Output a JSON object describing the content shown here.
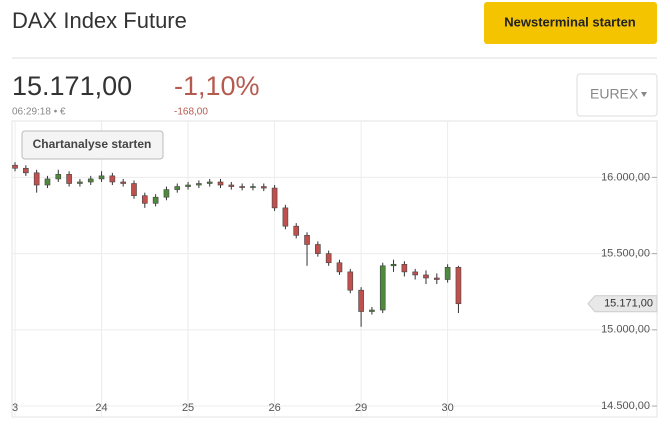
{
  "header": {
    "title": "DAX Index Future",
    "button": "Newsterminal starten",
    "price": "15.171,00",
    "change_pct": "-1,10%",
    "time": "06:29:18 • €",
    "change_abs": "-168,00",
    "exchange": "EUREX"
  },
  "chart_data": {
    "type": "candlestick",
    "button": "Chartanalyse starten",
    "x": [
      0,
      0.125,
      0.25,
      0.375,
      0.5,
      0.625,
      0.75,
      0.875,
      1,
      1.125,
      1.25,
      1.375,
      1.5,
      1.625,
      1.75,
      1.875,
      2,
      2.125,
      2.25,
      2.375,
      2.5,
      2.625,
      2.75,
      2.875,
      3,
      3.125,
      3.25,
      3.375,
      3.5,
      3.625,
      3.75,
      3.875,
      4,
      4.125,
      4.25,
      4.375,
      4.5,
      4.625,
      4.75,
      4.875,
      5,
      5.125
    ],
    "open": [
      16080,
      16060,
      16030,
      15950,
      15990,
      16020,
      15960,
      15970,
      15990,
      16010,
      15970,
      15960,
      15880,
      15830,
      15870,
      15920,
      15940,
      15950,
      15960,
      15970,
      15950,
      15940,
      15935,
      15940,
      15930,
      15800,
      15680,
      15620,
      15560,
      15500,
      15440,
      15380,
      15260,
      15120,
      15130,
      15420,
      15430,
      15380,
      15360,
      15340,
      15330,
      15410
    ],
    "high": [
      16100,
      16080,
      16050,
      16010,
      16050,
      16040,
      15990,
      16010,
      16040,
      16030,
      15990,
      15980,
      15900,
      15890,
      15940,
      15960,
      15970,
      15980,
      15990,
      15990,
      15970,
      15960,
      15960,
      15960,
      15950,
      15820,
      15700,
      15640,
      15580,
      15520,
      15460,
      15400,
      15280,
      15150,
      15440,
      15460,
      15450,
      15400,
      15390,
      15370,
      15430,
      15420
    ],
    "low": [
      16040,
      16010,
      15900,
      15930,
      15970,
      15940,
      15940,
      15950,
      15970,
      15950,
      15940,
      15860,
      15800,
      15810,
      15850,
      15900,
      15920,
      15930,
      15940,
      15930,
      15920,
      15915,
      15915,
      15910,
      15780,
      15660,
      15600,
      15420,
      15480,
      15420,
      15360,
      15240,
      15020,
      15100,
      15110,
      15380,
      15350,
      15330,
      15300,
      15300,
      15310,
      15110
    ],
    "close": [
      16060,
      16030,
      15950,
      15990,
      16020,
      15960,
      15970,
      15990,
      16010,
      15970,
      15960,
      15880,
      15830,
      15870,
      15920,
      15940,
      15950,
      15960,
      15970,
      15950,
      15940,
      15935,
      15940,
      15930,
      15800,
      15680,
      15620,
      15560,
      15500,
      15440,
      15380,
      15260,
      15120,
      15130,
      15420,
      15430,
      15380,
      15360,
      15340,
      15330,
      15410,
      15171
    ],
    "up_color": "#4f8a3c",
    "down_color": "#c0504d",
    "xlim": [
      -0.035,
      7.42
    ],
    "xticks": [
      {
        "value": 0,
        "label": "3"
      },
      {
        "value": 1,
        "label": "24"
      },
      {
        "value": 2,
        "label": "25"
      },
      {
        "value": 3,
        "label": "26"
      },
      {
        "value": 4,
        "label": "29"
      },
      {
        "value": 5,
        "label": "30"
      }
    ],
    "ylim": [
      14428,
      16370
    ],
    "yticks": [
      {
        "value": 14500,
        "label": "14.500,00"
      },
      {
        "value": 15000,
        "label": "15.000,00"
      },
      {
        "value": 15500,
        "label": "15.500,00"
      },
      {
        "value": 16000,
        "label": "16.000,00"
      }
    ],
    "grid": true,
    "last_price": {
      "value": 15171,
      "label": "15.171,00"
    }
  }
}
